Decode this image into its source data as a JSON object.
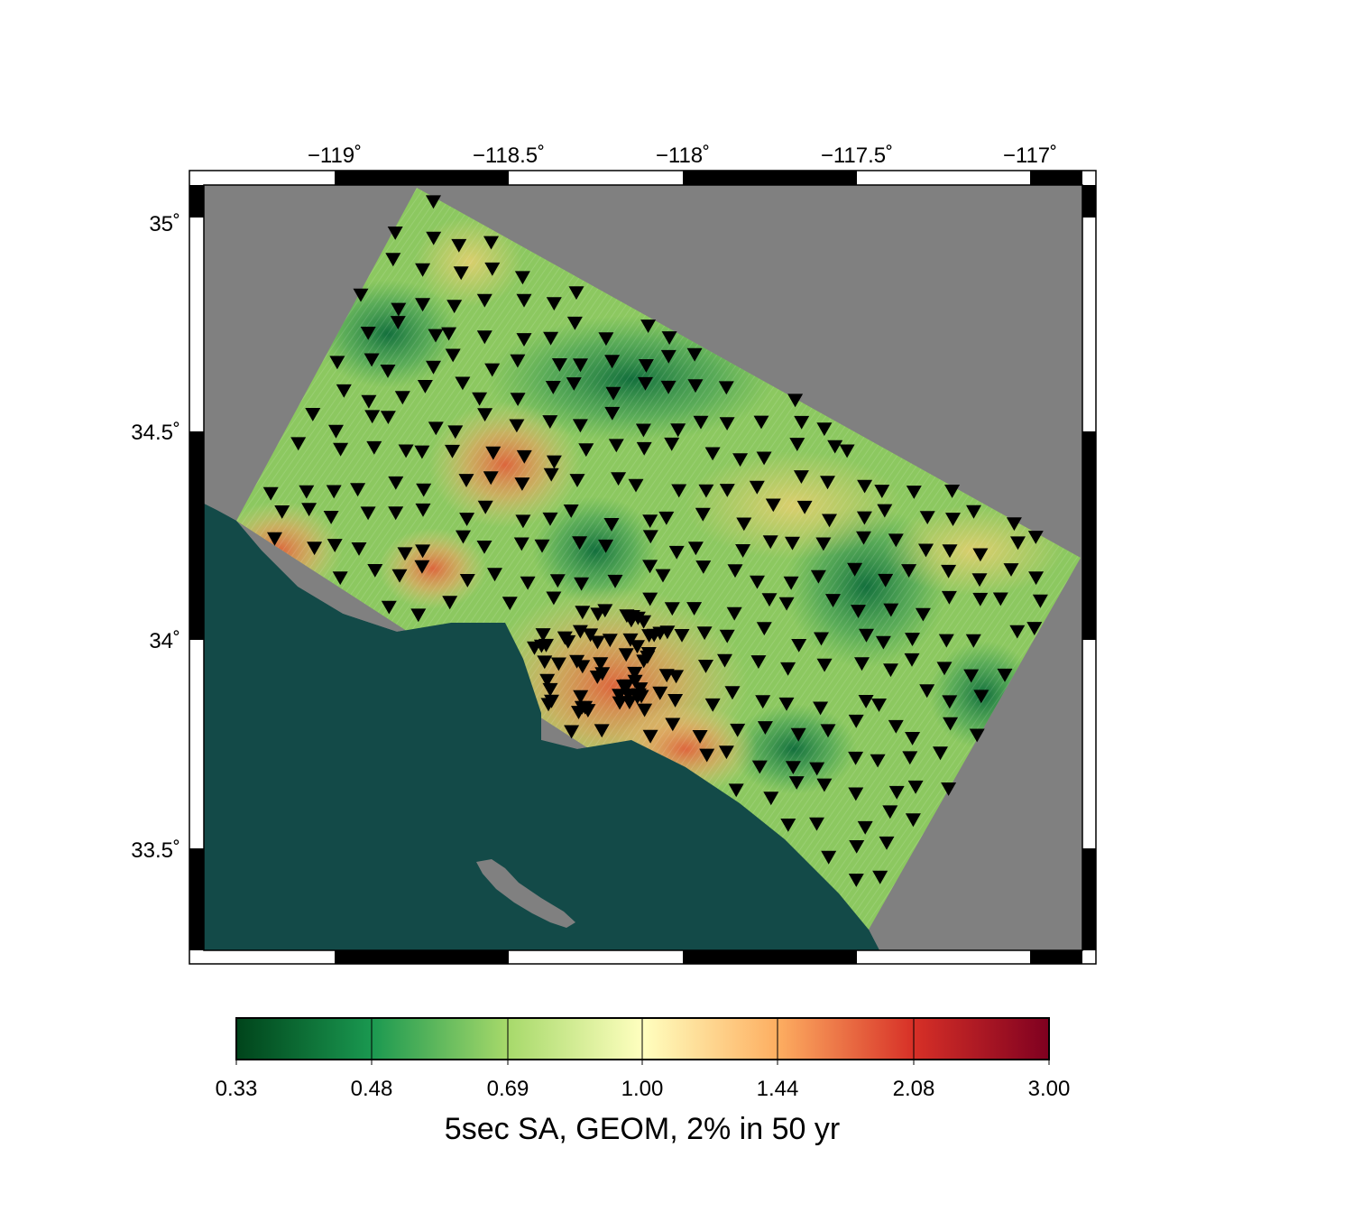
{
  "map": {
    "lon_ticks": [
      "−119˚",
      "−118.5˚",
      "−118˚",
      "−117.5˚",
      "−117˚"
    ],
    "lat_ticks": [
      "35˚",
      "34.5˚",
      "34˚",
      "33.5˚"
    ],
    "colors": {
      "ocean": "#134a48",
      "outside_region": "#808080",
      "station_marker": "#000000",
      "frame": "#000000"
    },
    "station_symbol": "inverted-triangle",
    "colorbar": {
      "tick_labels": [
        "0.33",
        "0.48",
        "0.69",
        "1.00",
        "1.44",
        "2.08",
        "3.00"
      ],
      "title": "5sec SA, GEOM, 2% in 50 yr",
      "colormap": [
        "#00441b",
        "#1a9850",
        "#a6d96a",
        "#ffffbf",
        "#fdae61",
        "#d73027",
        "#7f0020"
      ]
    }
  }
}
